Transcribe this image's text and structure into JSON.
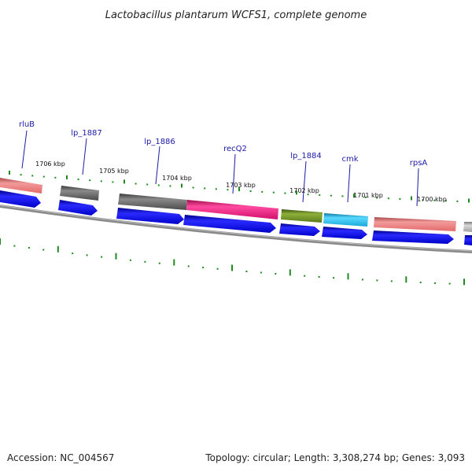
{
  "title": "Lactobacillus plantarum WCFS1, complete genome",
  "footer": {
    "accession": "Accession: NC_004567",
    "summary": "Topology: circular; Length: 3,308,274 bp; Genes: 3,093"
  },
  "scale_labels": [
    "1706 kbp",
    "1705 kbp",
    "1704 kbp",
    "1703 kbp",
    "1702 kbp",
    "1701 kbp",
    "1700 kbp"
  ],
  "gene_labels": [
    "rluB",
    "lp_1887",
    "lp_1886",
    "recQ2",
    "lp_1884",
    "cmk",
    "rpsA"
  ],
  "colors": {
    "gene_label": "#1a1aa6",
    "tick_green": "#1e8a1e",
    "backbone": "#8a8a8a",
    "cds_blue": "#0a0ae6",
    "salmon": "#e87a7a",
    "dark_gray": "#5a5a5a",
    "magenta": "#e0147c",
    "olive": "#6a8a1e",
    "cyan": "#18b8e0",
    "light_gray": "#b0b0b0"
  }
}
